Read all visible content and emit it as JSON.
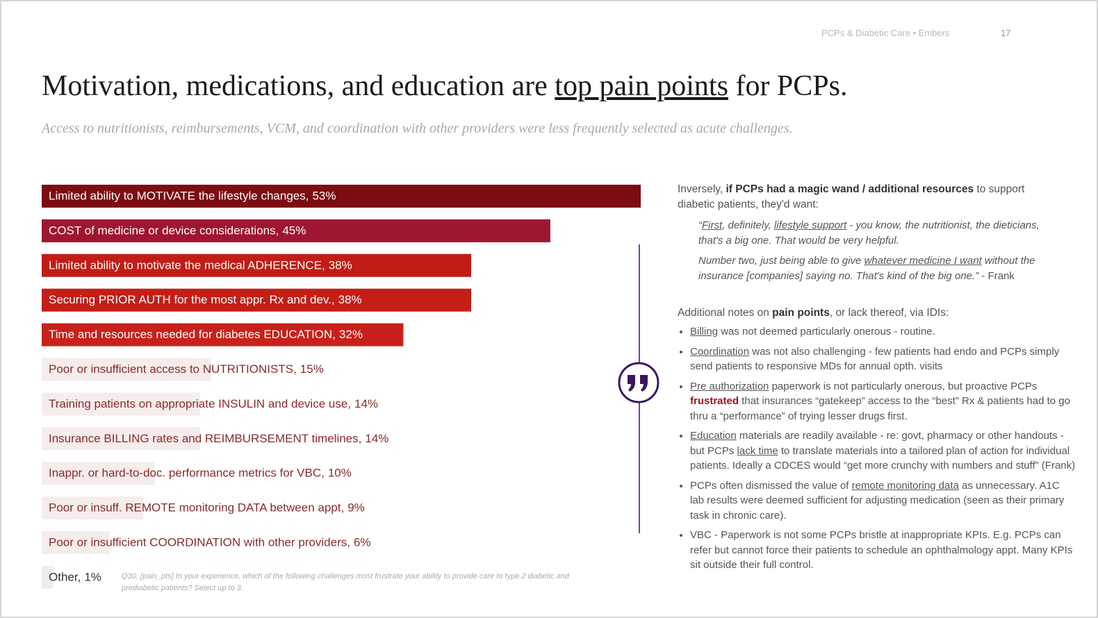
{
  "header": {
    "deck": "PCPs & Diabetic Care • Embers",
    "page": "17"
  },
  "title": [
    {
      "text": "Motivation, medications, and education are "
    },
    {
      "text": "top pain points",
      "style": "u"
    },
    {
      "text": " for PCPs."
    }
  ],
  "subtitle": "Access to nutritionists, reimbursements, VCM, and coordination with other providers were less frequently selected as acute challenges.",
  "chart_data": {
    "type": "bar",
    "orientation": "horizontal",
    "categories": [
      "Limited ability to MOTIVATE the lifestyle changes,",
      "COST of medicine or device considerations,",
      "Limited ability to motivate the medical ADHERENCE,",
      "Securing PRIOR AUTH for the most appr. Rx and dev.,",
      "Time and resources needed for diabetes EDUCATION,",
      "Poor or insufficient access to NUTRITIONISTS,",
      "Training patients on appropriate INSULIN and device use,",
      "Insurance BILLING rates and REIMBURSEMENT timelines,",
      "Inappr. or hard-to-doc. performance metrics for VBC,",
      "Poor or insuff. REMOTE monitoring DATA between appt,",
      "Poor or insufficient COORDINATION with other providers,",
      "Other,"
    ],
    "values": [
      53,
      45,
      38,
      38,
      32,
      15,
      14,
      14,
      10,
      9,
      6,
      1
    ],
    "value_labels": [
      "53%",
      "45%",
      "38%",
      "38%",
      "32%",
      "15%",
      "14%",
      "14%",
      "10%",
      "9%",
      "6%",
      "1%"
    ],
    "colors": [
      "#7b0d12",
      "#9e1631",
      "#c11d16",
      "#c41e16",
      "#c8211b",
      "#f5ecec",
      "#f5ecec",
      "#f5ecec",
      "#f5ecec",
      "#f5ecec",
      "#f5ecec",
      "#eeeeee"
    ],
    "xlim": [
      0,
      53
    ],
    "footnote": "Q30. [pain_pts] In your experience, which of the following challenges most frustrate your ability to provide care to type 2 diabetic and prediabetic patients? Select up to 3."
  },
  "notes": {
    "intro": [
      {
        "text": "Inversely, "
      },
      {
        "text": "if PCPs had a magic wand / additional resources",
        "style": "b"
      },
      {
        "text": " to support diabetic patients, they'd want:"
      }
    ],
    "quote": [
      [
        {
          "text": "“"
        },
        {
          "text": "First",
          "style": "u"
        },
        {
          "text": ", definitely, "
        },
        {
          "text": "lifestyle support",
          "style": "u"
        },
        {
          "text": " - you know, the nutritionist, the dieticians, that's a big one.  That would be very helpful."
        }
      ],
      [
        {
          "text": "Number two, just being able to give "
        },
        {
          "text": "whatever medicine I want",
          "style": "u"
        },
        {
          "text": " without the insurance [companies] saying no.  That's kind of the big one.”"
        },
        {
          "text": " - Frank",
          "style": "n"
        }
      ]
    ],
    "heading": [
      {
        "text": "Additional notes on "
      },
      {
        "text": "pain points",
        "style": "b"
      },
      {
        "text": ", or lack thereof, via IDIs:"
      }
    ],
    "bullets": [
      [
        {
          "text": "Billing",
          "style": "u"
        },
        {
          "text": " was not deemed particularly onerous - routine."
        }
      ],
      [
        {
          "text": "Coordination",
          "style": "u"
        },
        {
          "text": " was not also challenging - few patients had endo and PCPs simply send patients to responsive MDs for annual opth. visits"
        }
      ],
      [
        {
          "text": "Pre authorization",
          "style": "u"
        },
        {
          "text": " paperwork is not particularly onerous, but proactive PCPs "
        },
        {
          "text": "frustrated",
          "style": "red"
        },
        {
          "text": " that insurances “gatekeep” access to the “best” Rx & patients had to go thru a “performance” of trying lesser drugs first."
        }
      ],
      [
        {
          "text": "Education",
          "style": "u"
        },
        {
          "text": " materials are readily available - re: govt, pharmacy or other handouts - but PCPs "
        },
        {
          "text": "lack time",
          "style": "u"
        },
        {
          "text": " to translate materials into a tailored plan of action for individual patients.  Ideally a CDCES would “get more crunchy with numbers and stuff” (Frank)"
        }
      ],
      [
        {
          "text": "PCPs often dismissed the value of "
        },
        {
          "text": "remote monitoring data",
          "style": "u"
        },
        {
          "text": " as unnecessary.  A1C lab results were deemed sufficient for adjusting medication (seen as their primary task in chronic care)."
        }
      ],
      [
        {
          "text": "VBC - Paperwork is not some PCPs bristle at inappropriate KPIs. E.g. PCPs can refer but cannot force their patients to schedule an ophthalmology appt.  Many KPIs sit outside their full control."
        }
      ]
    ]
  }
}
